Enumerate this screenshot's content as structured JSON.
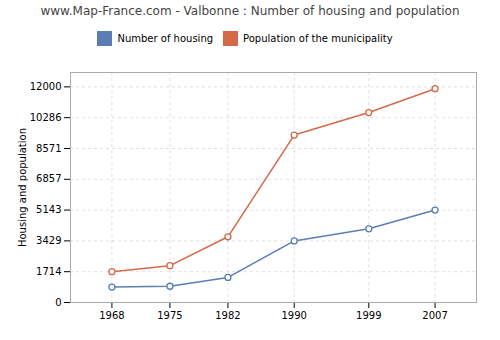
{
  "chart_data": {
    "type": "line",
    "title": "www.Map-France.com - Valbonne : Number of housing and population",
    "ylabel": "Housing and population",
    "x": [
      1968,
      1975,
      1982,
      1990,
      1999,
      2007
    ],
    "series": [
      {
        "name": "Number of housing",
        "color": "#5b7db5",
        "values": [
          857,
          905,
          1397,
          3429,
          4100,
          5143
        ]
      },
      {
        "name": "Population of the municipality",
        "color": "#d4694a",
        "values": [
          1714,
          2050,
          3657,
          9317,
          10571,
          11900
        ]
      }
    ],
    "xlim": [
      1963,
      2012
    ],
    "xticks": [
      1968,
      1975,
      1982,
      1990,
      1999,
      2007
    ],
    "ylim": [
      0,
      12800
    ],
    "yticks": [
      0,
      1714,
      3429,
      5143,
      6857,
      8571,
      10286,
      12000
    ],
    "grid": true,
    "legend": "top",
    "marker": "circle"
  }
}
